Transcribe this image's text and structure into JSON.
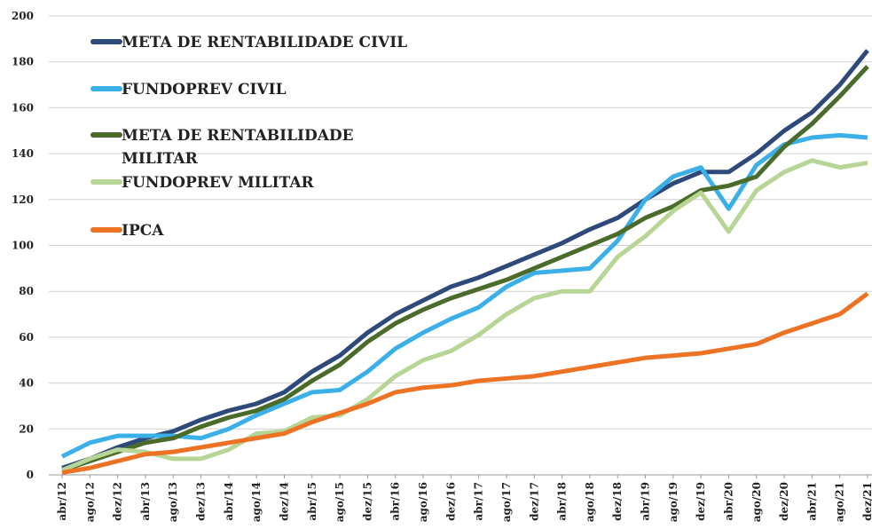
{
  "chart_data": {
    "type": "line",
    "categories": [
      "abr/12",
      "ago/12",
      "dez/12",
      "abr/13",
      "ago/13",
      "dez/13",
      "abr/14",
      "ago/14",
      "dez/14",
      "abr/15",
      "ago/15",
      "dez/15",
      "abr/16",
      "ago/16",
      "dez/16",
      "abr/17",
      "ago/17",
      "dez/17",
      "abr/18",
      "ago/18",
      "dez/18",
      "abr/19",
      "ago/19",
      "dez/19",
      "abr/20",
      "ago/20",
      "dez/20",
      "abr/21",
      "ago/21",
      "dez/21"
    ],
    "series": [
      {
        "name": "META DE RENTABILIDADE CIVIL",
        "color": "#2e4a7a",
        "values": [
          3,
          7,
          12,
          16,
          19,
          24,
          28,
          31,
          36,
          45,
          52,
          62,
          70,
          76,
          82,
          86,
          91,
          96,
          101,
          107,
          112,
          120,
          127,
          132,
          132,
          140,
          150,
          158,
          170,
          185
        ]
      },
      {
        "name": "FUNDOPREV CIVIL",
        "color": "#3bb0e8",
        "values": [
          8,
          14,
          17,
          17,
          17,
          16,
          20,
          26,
          31,
          36,
          37,
          45,
          55,
          62,
          68,
          73,
          82,
          88,
          89,
          90,
          102,
          120,
          130,
          134,
          116,
          135,
          144,
          147,
          148,
          147
        ]
      },
      {
        "name": "META DE RENTABILIDADE MILITAR",
        "color": "#4a6b2a",
        "values": [
          2,
          6,
          10,
          14,
          16,
          21,
          25,
          28,
          33,
          41,
          48,
          58,
          66,
          72,
          77,
          81,
          85,
          90,
          95,
          100,
          105,
          112,
          117,
          124,
          126,
          130,
          143,
          153,
          165,
          178
        ]
      },
      {
        "name": "FUNDOPREV MILITAR",
        "color": "#b7d595",
        "values": [
          2,
          7,
          11,
          10,
          7,
          7,
          11,
          18,
          19,
          25,
          26,
          33,
          43,
          50,
          54,
          61,
          70,
          77,
          80,
          80,
          95,
          104,
          115,
          123,
          106,
          124,
          132,
          137,
          134,
          136
        ]
      },
      {
        "name": "IPCA",
        "color": "#ed7224",
        "values": [
          1,
          3,
          6,
          9,
          10,
          12,
          14,
          16,
          18,
          23,
          27,
          31,
          36,
          38,
          39,
          41,
          42,
          43,
          45,
          47,
          49,
          51,
          52,
          53,
          55,
          57,
          62,
          66,
          70,
          79
        ]
      }
    ],
    "ylim": [
      0,
      200
    ],
    "yticks": [
      0,
      20,
      40,
      60,
      80,
      100,
      120,
      140,
      160,
      180,
      200
    ],
    "grid": true,
    "legend": "upper left"
  }
}
